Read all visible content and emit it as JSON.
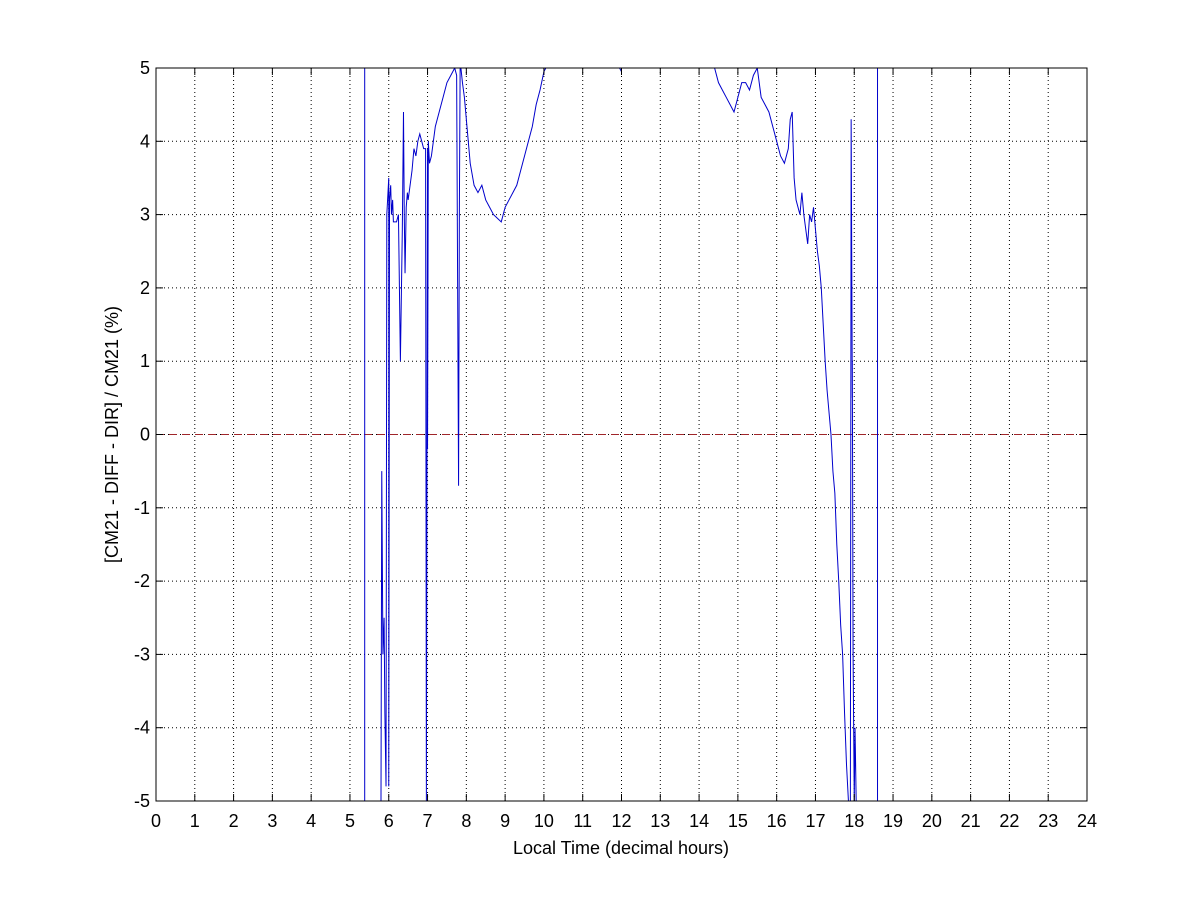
{
  "chart_data": {
    "type": "line",
    "title": "",
    "xlabel": "Local Time (decimal hours)",
    "ylabel": "[CM21 - DIFF - DIR] / CM21 (%)",
    "xlim": [
      0,
      24
    ],
    "ylim": [
      -5,
      5
    ],
    "xticks": [
      0,
      1,
      2,
      3,
      4,
      5,
      6,
      7,
      8,
      9,
      10,
      11,
      12,
      13,
      14,
      15,
      16,
      17,
      18,
      19,
      20,
      21,
      22,
      23,
      24
    ],
    "yticks": [
      -5,
      -4,
      -3,
      -2,
      -1,
      0,
      1,
      2,
      3,
      4,
      5
    ],
    "grid": true,
    "reference_line": {
      "y": 0,
      "color": "#a0262a",
      "style": "dashed"
    },
    "series": [
      {
        "color": "#0000cc",
        "x": [
          5.38,
          5.38,
          5.38,
          5.8,
          5.82,
          5.85,
          5.88,
          5.9,
          5.93,
          5.95,
          5.98,
          6.0,
          6.0,
          6.02,
          6.05,
          6.07,
          6.1,
          6.12,
          6.15,
          6.2,
          6.25,
          6.3,
          6.35,
          6.38,
          6.4,
          6.42,
          6.45,
          6.48,
          6.5,
          6.55,
          6.6,
          6.65,
          6.7,
          6.75,
          6.8,
          6.85,
          6.9,
          6.95,
          6.97,
          7.0,
          7.0,
          7.02,
          7.05,
          7.1,
          7.15,
          7.2,
          7.3,
          7.4,
          7.5,
          7.6,
          7.7,
          7.75,
          7.8,
          7.82,
          7.84,
          7.86,
          7.88,
          7.9,
          7.95,
          8.0,
          8.05,
          8.1,
          8.2,
          8.3,
          8.4,
          8.5,
          8.6,
          8.7,
          8.8,
          8.9,
          9.0,
          9.1,
          9.2,
          9.3,
          9.4,
          9.5,
          9.6,
          9.7,
          9.8,
          9.9,
          10.0,
          10.05
        ],
        "y": [
          -5,
          5,
          -5,
          -5,
          -0.5,
          -3.0,
          -2.5,
          -3.8,
          -4.8,
          3.0,
          3.3,
          3.5,
          -4.8,
          3.2,
          3.4,
          3.0,
          3.2,
          2.9,
          2.9,
          2.9,
          3.0,
          1.0,
          2.8,
          4.4,
          3.0,
          2.2,
          3.1,
          3.3,
          3.2,
          3.4,
          3.6,
          3.9,
          3.8,
          4.0,
          4.1,
          4.0,
          3.9,
          3.9,
          -5,
          3.9,
          -0.2,
          4.0,
          3.7,
          3.8,
          4.0,
          4.2,
          4.4,
          4.6,
          4.8,
          4.9,
          5.0,
          4.9,
          -0.7,
          3.0,
          5.0,
          5.0,
          4.9,
          4.8,
          4.6,
          4.3,
          4.0,
          3.7,
          3.4,
          3.3,
          3.4,
          3.2,
          3.1,
          3.0,
          2.95,
          2.9,
          3.1,
          3.2,
          3.3,
          3.4,
          3.6,
          3.8,
          4.0,
          4.2,
          4.5,
          4.7,
          4.95,
          5.0
        ]
      },
      {
        "color": "#0000cc",
        "x": [
          11.95,
          12.0
        ],
        "y": [
          5.0,
          4.95
        ]
      },
      {
        "color": "#0000cc",
        "x": [
          14.4,
          14.5,
          14.6,
          14.7,
          14.8,
          14.9,
          15.0,
          15.1,
          15.2,
          15.3,
          15.4,
          15.5,
          15.6,
          15.7,
          15.8,
          15.9,
          16.0,
          16.1,
          16.2,
          16.3,
          16.35,
          16.4,
          16.45,
          16.5,
          16.55,
          16.6,
          16.65,
          16.7,
          16.75,
          16.8,
          16.85,
          16.9,
          16.95,
          17.0,
          17.05,
          17.1,
          17.15,
          17.2,
          17.25,
          17.3,
          17.35,
          17.4,
          17.45,
          17.5,
          17.55,
          17.6,
          17.65,
          17.7,
          17.75,
          17.8,
          17.85,
          17.9,
          17.92,
          17.95,
          17.95,
          17.97,
          18.0,
          18.02,
          18.05
        ],
        "y": [
          5.0,
          4.8,
          4.7,
          4.6,
          4.5,
          4.4,
          4.6,
          4.8,
          4.8,
          4.7,
          4.9,
          5.0,
          4.6,
          4.5,
          4.4,
          4.2,
          4.0,
          3.8,
          3.7,
          3.9,
          4.3,
          4.4,
          3.5,
          3.2,
          3.1,
          3.0,
          3.3,
          3.0,
          2.8,
          2.6,
          3.0,
          2.9,
          3.1,
          2.8,
          2.5,
          2.3,
          2.0,
          1.5,
          1.0,
          0.6,
          0.3,
          0.0,
          -0.5,
          -0.8,
          -1.5,
          -2.0,
          -2.6,
          -3.0,
          -3.8,
          -4.5,
          -5.0,
          -5.0,
          4.3,
          0.5,
          1.0,
          -3.0,
          -5.0,
          -4.0,
          -5.0
        ]
      },
      {
        "color": "#0000cc",
        "x": [
          18.6,
          18.6
        ],
        "y": [
          -5,
          5
        ]
      }
    ]
  }
}
